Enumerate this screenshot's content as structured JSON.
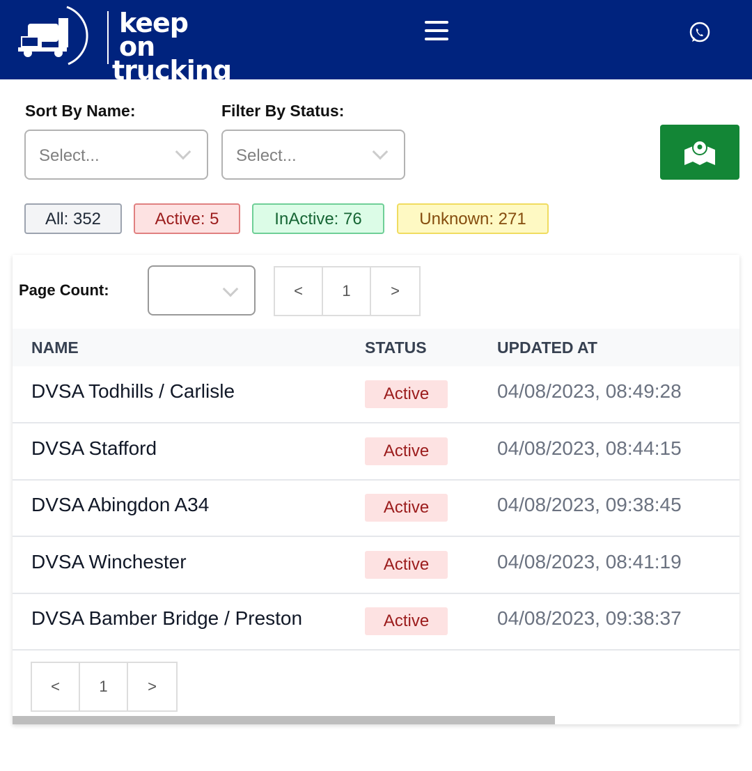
{
  "header": {
    "logo_line1": "keep on",
    "logo_line2": "trucking",
    "menu_icon": "hamburger-icon",
    "contact_icon": "whatsapp-icon",
    "brand_color": "#00237e"
  },
  "filters": {
    "sort_label": "Sort By Name:",
    "sort_placeholder": "Select...",
    "status_label": "Filter By Status:",
    "status_placeholder": "Select...",
    "map_icon": "map-pin-icon"
  },
  "counts": [
    {
      "label": "All: 352",
      "bg": "#f3f4f6",
      "border": "#9ca3af",
      "color": "#1f2937"
    },
    {
      "label": "Active: 5",
      "bg": "#fde2e2",
      "border": "#e08080",
      "color": "#9b1c1c"
    },
    {
      "label": "InActive: 76",
      "bg": "#dcfce7",
      "border": "#6fcf97",
      "color": "#166534"
    },
    {
      "label": "Unknown: 271",
      "bg": "#fef9c3",
      "border": "#f0dc60",
      "color": "#854d0e"
    }
  ],
  "table": {
    "page_count_label": "Page Count:",
    "pager": {
      "prev": "<",
      "page": "1",
      "next": ">"
    },
    "columns": [
      "NAME",
      "STATUS",
      "UPDATED AT"
    ],
    "rows": [
      {
        "name": "DVSA Todhills / Carlisle",
        "status": "Active",
        "updated": "04/08/2023, 08:49:28"
      },
      {
        "name": "DVSA Stafford",
        "status": "Active",
        "updated": "04/08/2023, 08:44:15"
      },
      {
        "name": "DVSA Abingdon A34",
        "status": "Active",
        "updated": "04/08/2023, 09:38:45"
      },
      {
        "name": "DVSA Winchester",
        "status": "Active",
        "updated": "04/08/2023, 08:41:19"
      },
      {
        "name": "DVSA Bamber Bridge / Preston",
        "status": "Active",
        "updated": "04/08/2023, 09:38:37"
      }
    ]
  }
}
